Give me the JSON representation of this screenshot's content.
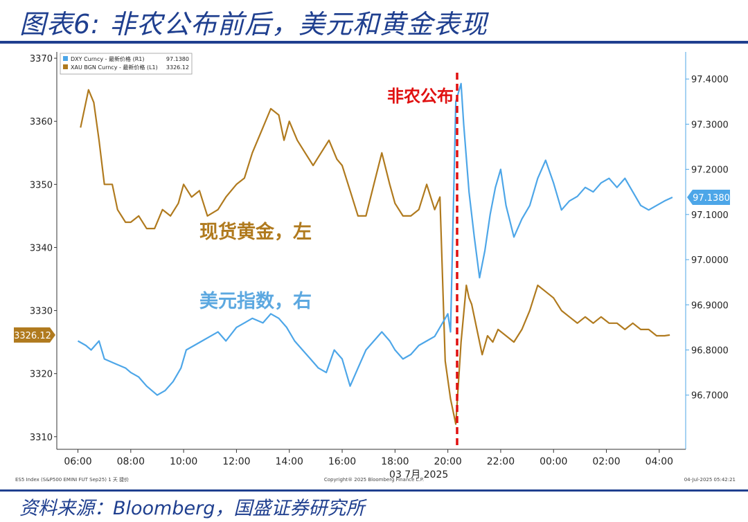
{
  "title": "图表6:  非农公布前后，美元和黄金表现",
  "source": "资料来源：Bloomberg，国盛证券研究所",
  "chart_data": {
    "type": "line",
    "xlabel": "03 7月 2025",
    "x_ticks": [
      "06:00",
      "08:00",
      "10:00",
      "12:00",
      "14:00",
      "16:00",
      "18:00",
      "20:00",
      "22:00",
      "00:00",
      "02:00",
      "04:00"
    ],
    "left_axis": {
      "ylim": [
        3308,
        3371
      ],
      "ticks": [
        "3310",
        "3320",
        "3330",
        "3340",
        "3350",
        "3360",
        "3370"
      ]
    },
    "right_axis": {
      "ylim": [
        96.58,
        97.46
      ],
      "ticks": [
        "96.7000",
        "96.8000",
        "96.9000",
        "97.0000",
        "97.1000",
        "97.2000",
        "97.3000",
        "97.4000"
      ]
    },
    "legend": [
      {
        "label": "DXY Curncy - 最新价格 (R1)",
        "value": "97.1380",
        "color": "#4da6e8"
      },
      {
        "label": "XAU BGN Curncy - 最新价格 (L1)",
        "value": "3326.12",
        "color": "#b07a1e"
      }
    ],
    "last_value_tags": {
      "gold": "3326.12",
      "dxy": "97.1380"
    },
    "annotations": {
      "nfp": "非农公布",
      "gold_label": "现货黄金，左",
      "dxy_label": "美元指数，右"
    },
    "footer": {
      "left": "ES5 Index (S&P500 EMINI FUT  Sep25) 1 天  捷价",
      "center": "Copyright® 2025 Bloomberg Finance L.P.",
      "right": "04-Jul-2025 05:42:21"
    },
    "series": [
      {
        "name": "XAU BGN Curncy - 最新价格 (L1)",
        "axis": "left",
        "color": "#b07a1e",
        "x": [
          6.1,
          6.4,
          6.6,
          6.8,
          7.0,
          7.3,
          7.5,
          7.8,
          8.0,
          8.3,
          8.6,
          8.9,
          9.2,
          9.5,
          9.8,
          10.0,
          10.3,
          10.6,
          10.9,
          11.3,
          11.6,
          12.0,
          12.3,
          12.6,
          13.0,
          13.3,
          13.6,
          13.8,
          14.0,
          14.3,
          14.6,
          14.9,
          15.2,
          15.5,
          15.8,
          16.0,
          16.3,
          16.6,
          16.9,
          17.2,
          17.5,
          17.8,
          18.0,
          18.3,
          18.6,
          18.9,
          19.2,
          19.5,
          19.7,
          19.9,
          20.1,
          20.3,
          20.5,
          20.7,
          20.8,
          20.9,
          21.1,
          21.3,
          21.5,
          21.7,
          21.9,
          22.2,
          22.5,
          22.8,
          23.1,
          23.4,
          23.7,
          24.0,
          24.3,
          24.6,
          24.9,
          25.2,
          25.5,
          25.8,
          26.1,
          26.4,
          26.7,
          27.0,
          27.3,
          27.6,
          27.9,
          28.2,
          28.4
        ],
        "values": [
          3359,
          3365,
          3363,
          3357,
          3350,
          3350,
          3346,
          3344,
          3344,
          3345,
          3343,
          3343,
          3346,
          3345,
          3347,
          3350,
          3348,
          3349,
          3345,
          3346,
          3348,
          3350,
          3351,
          3355,
          3359,
          3362,
          3361,
          3357,
          3360,
          3357,
          3355,
          3353,
          3355,
          3357,
          3354,
          3353,
          3349,
          3345,
          3345,
          3350,
          3355,
          3350,
          3347,
          3345,
          3345,
          3346,
          3350,
          3346,
          3348,
          3322,
          3316,
          3312,
          3325,
          3334,
          3332,
          3331,
          3327,
          3323,
          3326,
          3325,
          3327,
          3326,
          3325,
          3327,
          3330,
          3334,
          3333,
          3332,
          3330,
          3329,
          3328,
          3329,
          3328,
          3329,
          3328,
          3328,
          3327,
          3328,
          3327,
          3327,
          3326,
          3326,
          3326.12
        ]
      },
      {
        "name": "DXY Curncy - 最新价格 (R1)",
        "axis": "right",
        "color": "#4da6e8",
        "x": [
          6.0,
          6.3,
          6.5,
          6.8,
          7.0,
          7.4,
          7.8,
          8.0,
          8.3,
          8.6,
          9.0,
          9.3,
          9.6,
          9.9,
          10.1,
          10.4,
          10.7,
          11.0,
          11.3,
          11.6,
          12.0,
          12.3,
          12.6,
          13.0,
          13.3,
          13.6,
          13.9,
          14.2,
          14.5,
          14.8,
          15.1,
          15.4,
          15.7,
          16.0,
          16.3,
          16.6,
          16.9,
          17.2,
          17.5,
          17.8,
          18.0,
          18.3,
          18.6,
          18.9,
          19.2,
          19.5,
          19.8,
          20.0,
          20.1,
          20.3,
          20.5,
          20.6,
          20.8,
          21.0,
          21.2,
          21.4,
          21.6,
          21.8,
          22.0,
          22.2,
          22.5,
          22.8,
          23.1,
          23.4,
          23.7,
          24.0,
          24.3,
          24.6,
          24.9,
          25.2,
          25.5,
          25.8,
          26.1,
          26.4,
          26.7,
          27.0,
          27.3,
          27.6,
          27.9,
          28.2,
          28.5
        ],
        "values": [
          96.82,
          96.81,
          96.8,
          96.82,
          96.78,
          96.77,
          96.76,
          96.75,
          96.74,
          96.72,
          96.7,
          96.71,
          96.73,
          96.76,
          96.8,
          96.81,
          96.82,
          96.83,
          96.84,
          96.82,
          96.85,
          96.86,
          96.87,
          96.86,
          96.88,
          96.87,
          96.85,
          96.82,
          96.8,
          96.78,
          96.76,
          96.75,
          96.8,
          96.78,
          96.72,
          96.76,
          96.8,
          96.82,
          96.84,
          96.82,
          96.8,
          96.78,
          96.79,
          96.81,
          96.82,
          96.83,
          96.86,
          96.88,
          96.84,
          97.35,
          97.39,
          97.3,
          97.15,
          97.05,
          96.96,
          97.02,
          97.1,
          97.16,
          97.2,
          97.12,
          97.05,
          97.09,
          97.12,
          97.18,
          97.22,
          97.17,
          97.11,
          97.13,
          97.14,
          97.16,
          97.15,
          97.17,
          97.18,
          97.16,
          97.18,
          97.15,
          97.12,
          97.11,
          97.12,
          97.13,
          97.138
        ]
      }
    ]
  }
}
